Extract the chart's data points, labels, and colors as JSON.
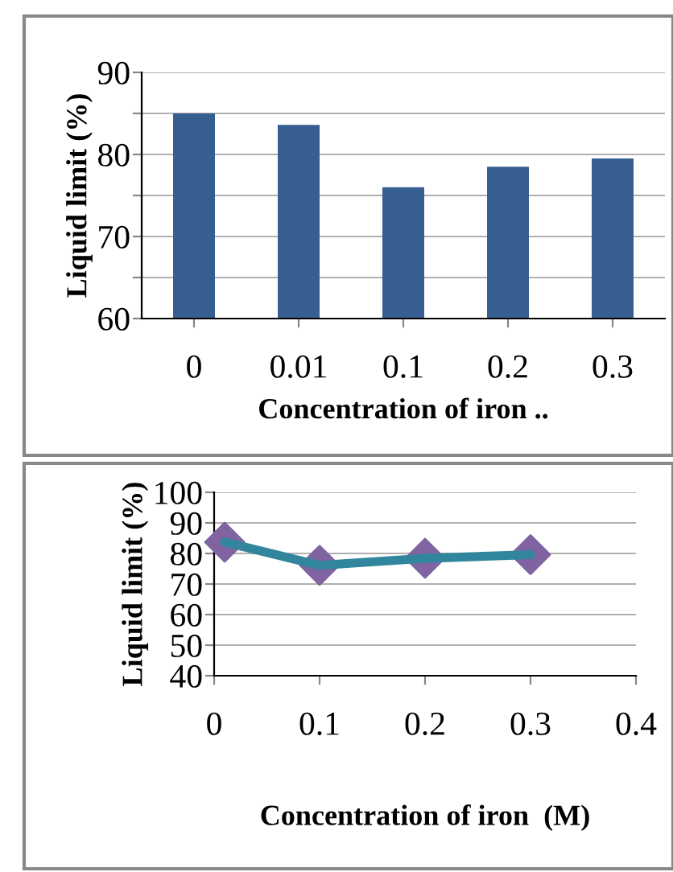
{
  "chart_data": [
    {
      "type": "bar",
      "categories": [
        "0",
        "0.01",
        "0.1",
        "0.2",
        "0.3"
      ],
      "values": [
        85.0,
        83.6,
        76.0,
        78.5,
        79.5
      ],
      "color": "#375e91",
      "ylim": [
        60,
        90
      ],
      "yticks": [
        60,
        {
          "value": 65,
          "label": null
        },
        70,
        {
          "value": 75,
          "label": null
        },
        80,
        {
          "value": 85,
          "label": null
        },
        90
      ],
      "grid": "y",
      "ylabel": "Liquid limit (%)",
      "xlabel": "Concentration of iron .."
    },
    {
      "type": "line",
      "series": [
        {
          "type": "scatter",
          "color": "#8064a2",
          "marker": "diamond",
          "x": [
            0.01,
            0.1,
            0.2,
            0.3
          ],
          "values": [
            83.7,
            76.1,
            78.4,
            79.6
          ]
        },
        {
          "type": "line",
          "color": "#31859c",
          "marker": "none",
          "x": [
            0.01,
            0.1,
            0.2,
            0.3
          ],
          "values": [
            83.7,
            76.1,
            78.4,
            79.6
          ]
        }
      ],
      "xlim": [
        0,
        0.4
      ],
      "xticks": [
        0,
        0.1,
        0.2,
        0.3,
        0.4
      ],
      "ylim": [
        40,
        100
      ],
      "yticks": [
        40,
        50,
        60,
        70,
        80,
        90,
        100
      ],
      "grid": "y",
      "ylabel": "Liquid limit (%)",
      "xlabel": "Concentration of iron  (M)"
    }
  ]
}
